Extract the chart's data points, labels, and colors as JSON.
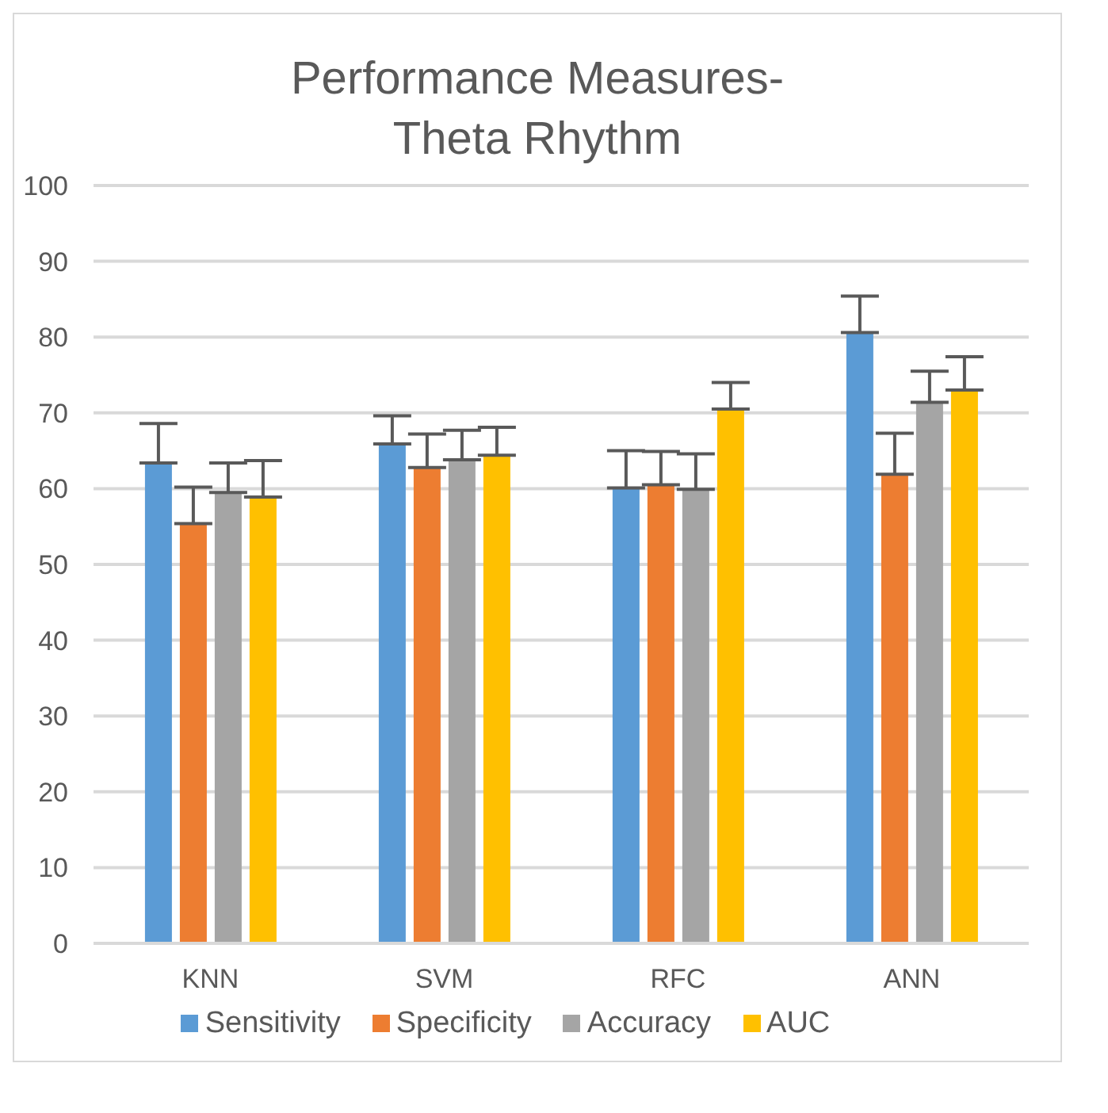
{
  "chart_data": {
    "type": "bar",
    "title": "Performance Measures- Theta Rhythm",
    "categories": [
      "KNN",
      "SVM",
      "RFC",
      "ANN"
    ],
    "series": [
      {
        "name": "Sensitivity",
        "color": "#5b9bd5",
        "values": [
          63.4,
          65.9,
          60.1,
          80.6
        ],
        "errors": [
          [
            63.4,
            68.6
          ],
          [
            65.9,
            69.6
          ],
          [
            60.1,
            65.0
          ],
          [
            80.6,
            85.4
          ]
        ]
      },
      {
        "name": "Specificity",
        "color": "#ed7d31",
        "values": [
          55.4,
          62.8,
          60.5,
          61.9
        ],
        "errors": [
          [
            55.4,
            60.2
          ],
          [
            62.8,
            67.2
          ],
          [
            60.5,
            64.9
          ],
          [
            61.9,
            67.3
          ]
        ]
      },
      {
        "name": "Accuracy",
        "color": "#a5a5a5",
        "values": [
          59.5,
          63.8,
          59.9,
          71.4
        ],
        "errors": [
          [
            59.5,
            63.4
          ],
          [
            63.8,
            67.7
          ],
          [
            59.9,
            64.6
          ],
          [
            71.4,
            75.5
          ]
        ]
      },
      {
        "name": "AUC",
        "color": "#ffc000",
        "values": [
          58.9,
          64.4,
          70.5,
          73.0
        ],
        "errors": [
          [
            58.9,
            63.7
          ],
          [
            64.4,
            68.1
          ],
          [
            70.5,
            74.0
          ],
          [
            73.0,
            77.4
          ]
        ]
      }
    ],
    "ylim": [
      0,
      100
    ],
    "yticks": [
      0,
      10,
      20,
      30,
      40,
      50,
      60,
      70,
      80,
      90,
      100
    ],
    "grid": "y",
    "legend": "bottom"
  }
}
